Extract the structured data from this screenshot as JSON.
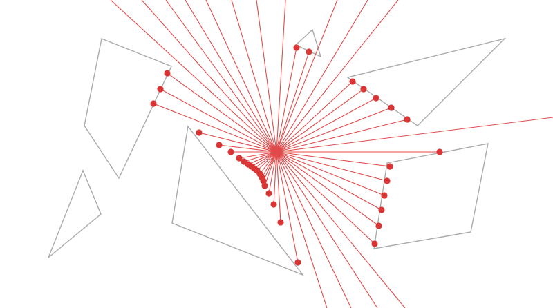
{
  "colors": {
    "background": "#ffffff",
    "obstacle_stroke": "#aaaaaa",
    "ray": "#e04a4a",
    "hit_point": "#d93535"
  },
  "scene": {
    "description_visible_text": ""
  }
}
